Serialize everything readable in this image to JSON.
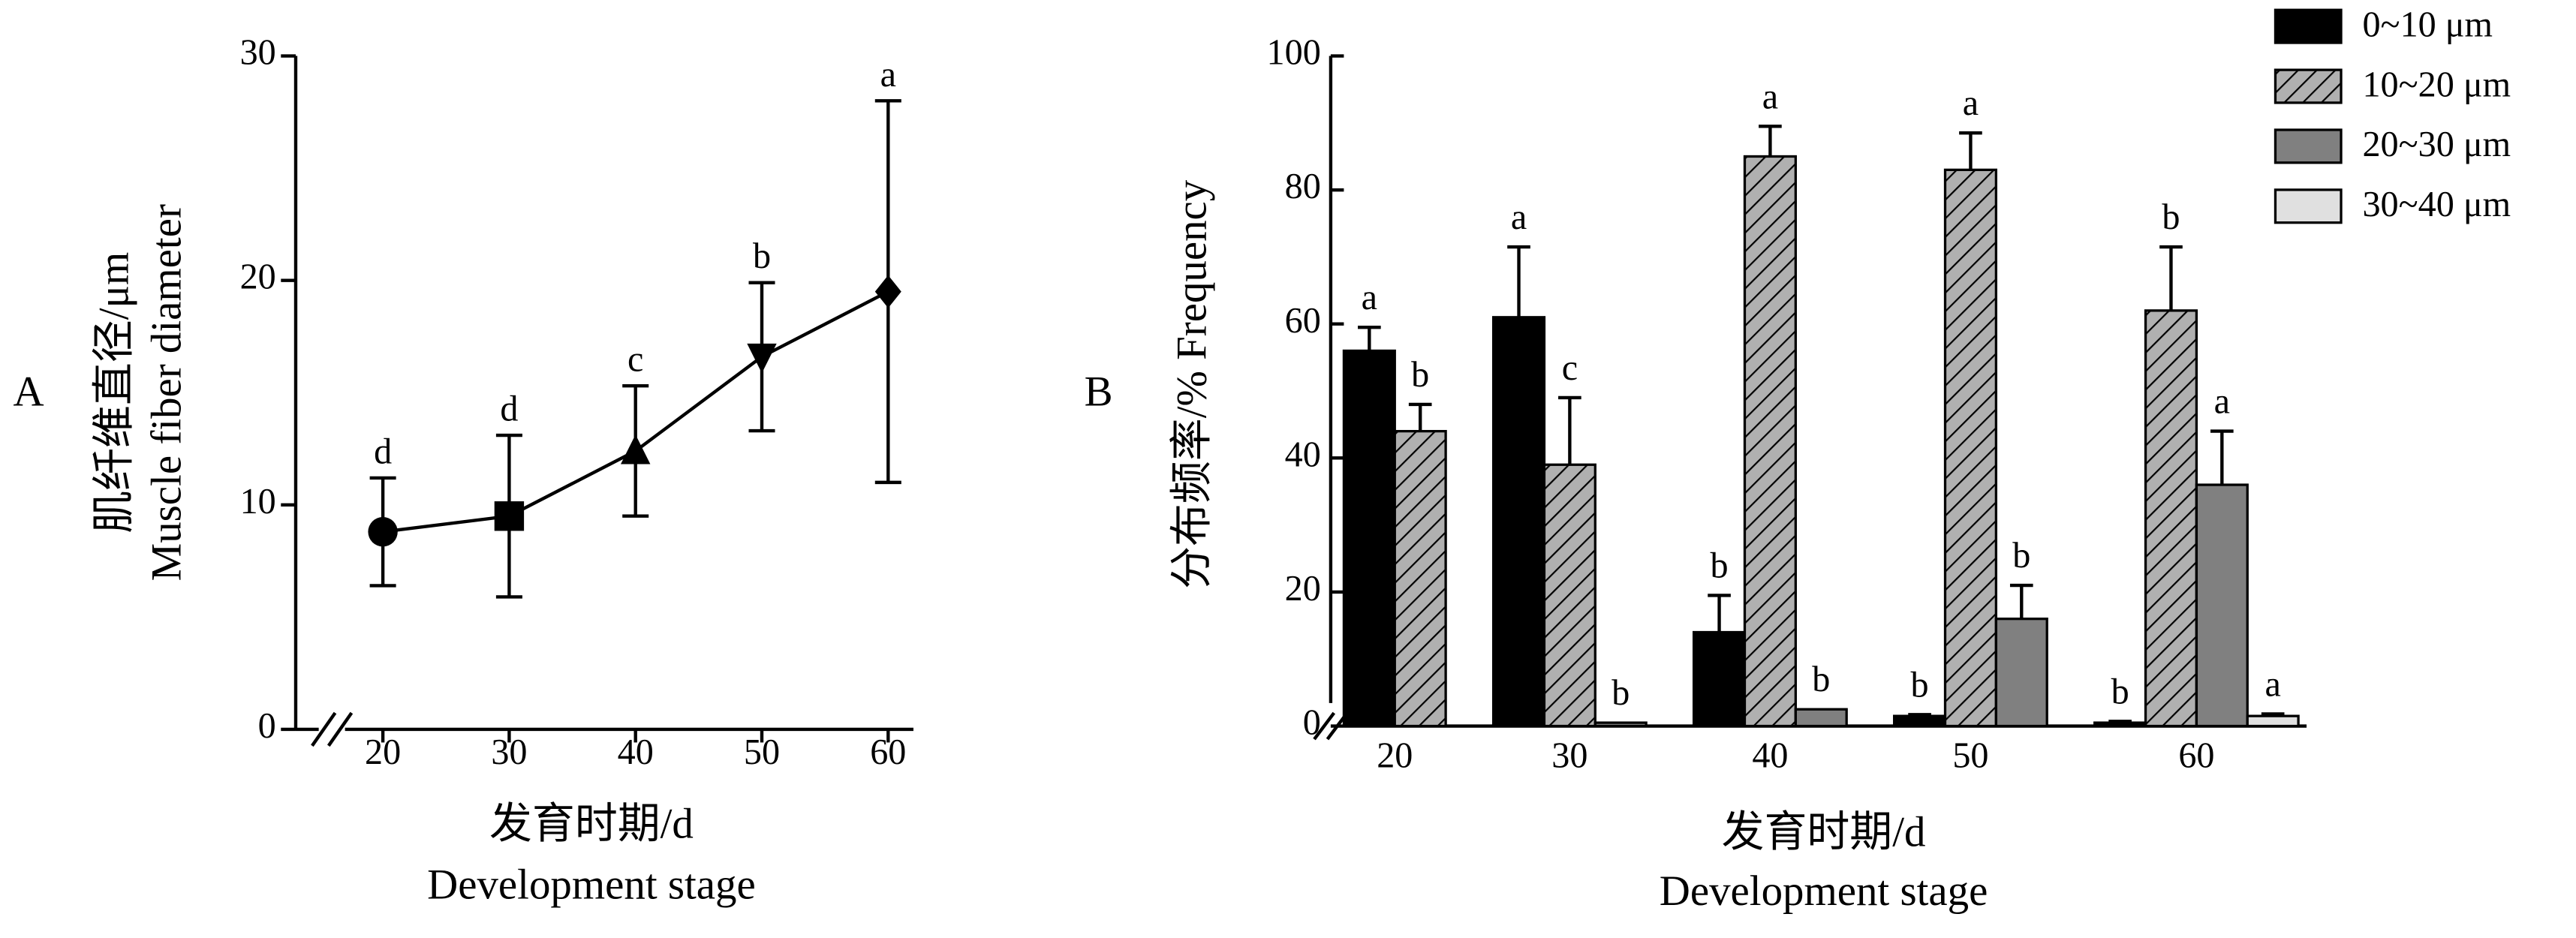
{
  "chart_data": [
    {
      "type": "line",
      "panel": "A",
      "ylabel": [
        "肌纤维直径/μm",
        "Muscle fiber diameter"
      ],
      "xlabel": [
        "发育时期/d",
        "Development stage"
      ],
      "x": [
        20,
        30,
        40,
        50,
        60
      ],
      "series": [
        {
          "color": "#000000",
          "values": [
            8.8,
            9.5,
            12.4,
            16.6,
            19.5
          ],
          "errors": [
            2.4,
            3.6,
            2.9,
            3.3,
            8.5
          ],
          "letters": [
            "d",
            "d",
            "c",
            "b",
            "a"
          ],
          "markers": [
            "circle",
            "square",
            "triangle-up",
            "triangle-down",
            "diamond"
          ]
        }
      ],
      "xlim": [
        14.4,
        62
      ],
      "xticks": [
        20,
        30,
        40,
        50,
        60
      ],
      "ylim": [
        0,
        30
      ],
      "yticks": [
        0,
        10,
        20,
        30
      ],
      "axis_break": true
    },
    {
      "type": "bar",
      "panel": "B",
      "ylabel": "分布频率/% Frequency",
      "xlabel": [
        "发育时期/d",
        "Development stage"
      ],
      "categories": [
        "20",
        "30",
        "40",
        "50",
        "60"
      ],
      "series": [
        {
          "name": "0~10 μm",
          "color": "#000000",
          "hatch": false,
          "values": [
            56,
            61,
            14,
            1.5,
            0.5
          ],
          "errors": [
            3.5,
            10.5,
            5.5,
            0.2,
            0.2
          ],
          "letters": [
            "a",
            "a",
            "b",
            "b",
            "b"
          ]
        },
        {
          "name": "10~20 μm",
          "color": "#b0b0b0",
          "hatch": true,
          "values": [
            44,
            39,
            85,
            83,
            62
          ],
          "errors": [
            4,
            10,
            4.5,
            5.5,
            9.5
          ],
          "letters": [
            "b",
            "c",
            "a",
            "a",
            "b"
          ]
        },
        {
          "name": "20~30 μm",
          "color": "#808080",
          "hatch": false,
          "values": [
            null,
            0.5,
            2.5,
            16,
            36
          ],
          "errors": [
            null,
            0,
            0,
            5,
            8
          ],
          "letters": [
            null,
            "b",
            "b",
            "b",
            "a"
          ]
        },
        {
          "name": "30~40 μm",
          "color": "#e0e0e0",
          "hatch": false,
          "values": [
            null,
            null,
            null,
            null,
            1.5
          ],
          "errors": [
            null,
            null,
            null,
            null,
            0.3
          ],
          "letters": [
            null,
            null,
            null,
            null,
            "a"
          ]
        }
      ],
      "ylim": [
        0,
        100
      ],
      "yticks": [
        0,
        20,
        40,
        60,
        80,
        100
      ],
      "axis_break": true,
      "legend": "upper-right"
    }
  ]
}
